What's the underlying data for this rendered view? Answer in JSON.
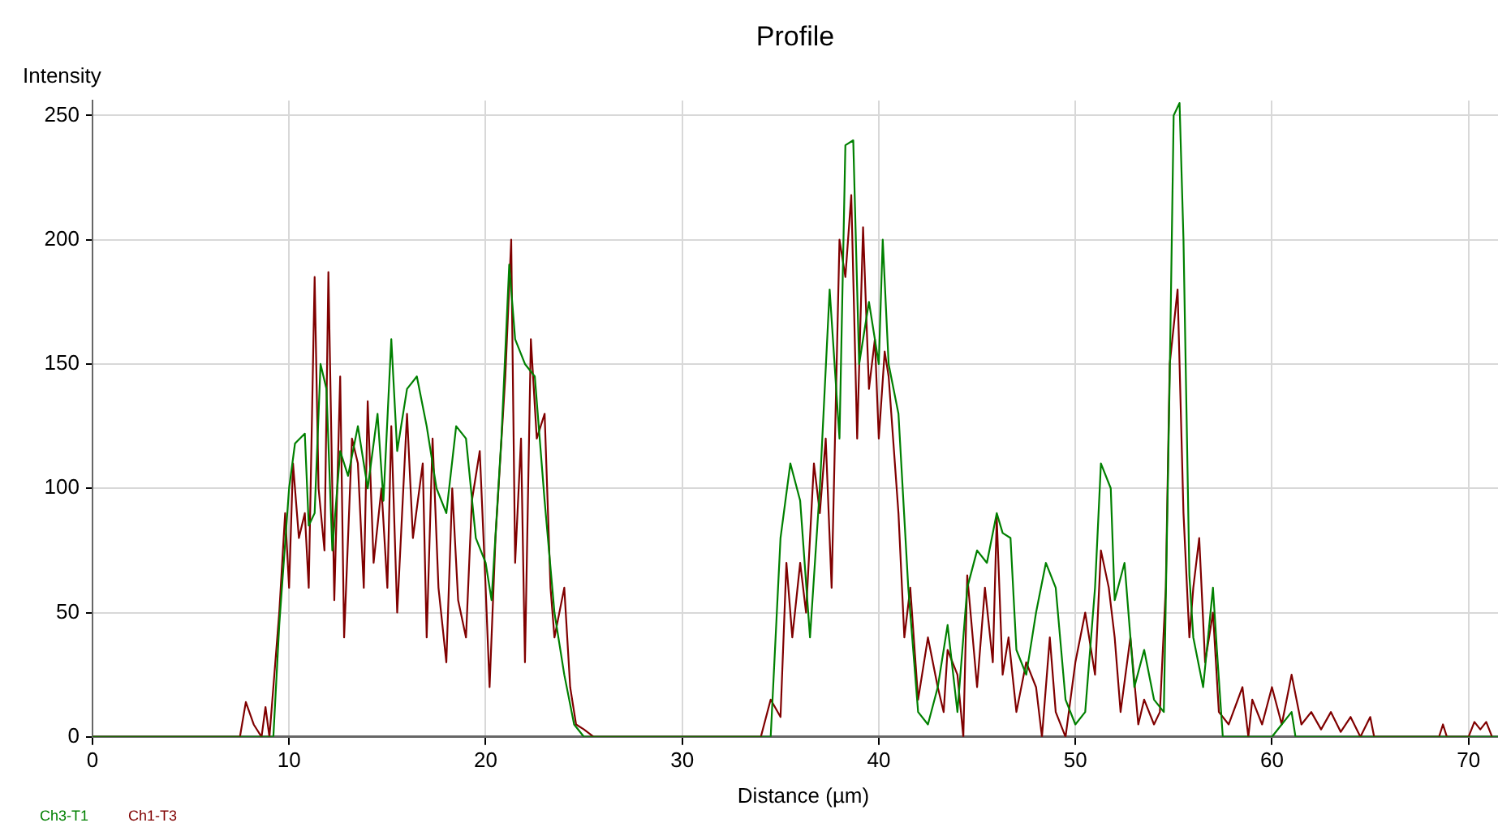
{
  "chart_data": {
    "type": "line",
    "title": "Profile",
    "xlabel": "Distance (µm)",
    "ylabel": "Intensity",
    "xlim": [
      0,
      71.5
    ],
    "xticks": [
      0,
      10,
      20,
      30,
      40,
      50,
      60,
      70
    ],
    "ylim": [
      0,
      256
    ],
    "yticks": [
      0,
      50,
      100,
      150,
      200,
      250
    ],
    "grid": true,
    "legend": "bottom left",
    "marker": "none",
    "line_style": "solid",
    "series": [
      {
        "name": "Ch3-T1",
        "color": "#008000",
        "x": [
          0,
          9.2,
          9.5,
          10,
          10.3,
          10.8,
          11,
          11.3,
          11.6,
          11.9,
          12.2,
          12.6,
          13,
          13.5,
          14,
          14.5,
          14.8,
          15.2,
          15.5,
          16,
          16.5,
          17,
          17.5,
          18,
          18.5,
          19,
          19.5,
          20,
          20.3,
          20.8,
          21.2,
          21.5,
          22,
          22.5,
          23,
          23.5,
          24,
          24.5,
          25,
          34.5,
          35,
          35.5,
          36,
          36.5,
          37,
          37.5,
          38,
          38.3,
          38.7,
          39,
          39.5,
          40,
          40.2,
          40.5,
          41,
          41.5,
          42,
          42.5,
          43,
          43.5,
          44,
          44.5,
          45,
          45.5,
          46,
          46.3,
          46.7,
          47,
          47.5,
          48,
          48.5,
          49,
          49.5,
          50,
          50.5,
          51,
          51.3,
          51.8,
          52,
          52.5,
          53,
          53.5,
          54,
          54.5,
          54.8,
          55,
          55.3,
          55.5,
          55.8,
          56,
          56.5,
          57,
          57.2,
          57.5,
          60,
          61,
          61.2,
          71.5
        ],
        "values": [
          0,
          0,
          45,
          100,
          118,
          122,
          85,
          90,
          150,
          140,
          75,
          115,
          105,
          125,
          100,
          130,
          95,
          160,
          115,
          140,
          145,
          125,
          100,
          90,
          125,
          120,
          80,
          70,
          55,
          120,
          190,
          160,
          150,
          145,
          95,
          50,
          25,
          5,
          0,
          0,
          80,
          110,
          95,
          40,
          100,
          180,
          120,
          238,
          240,
          150,
          175,
          150,
          200,
          150,
          130,
          60,
          10,
          5,
          20,
          45,
          10,
          60,
          75,
          70,
          90,
          82,
          80,
          35,
          25,
          50,
          70,
          60,
          15,
          5,
          10,
          60,
          110,
          100,
          55,
          70,
          20,
          35,
          15,
          10,
          145,
          250,
          255,
          200,
          65,
          40,
          20,
          60,
          35,
          0,
          0,
          10,
          0,
          0
        ]
      },
      {
        "name": "Ch1-T3",
        "color": "#800000",
        "x": [
          0,
          7.5,
          7.8,
          8.2,
          8.6,
          8.8,
          9,
          9.5,
          9.8,
          10,
          10.2,
          10.5,
          10.8,
          11,
          11.3,
          11.5,
          11.8,
          12,
          12.3,
          12.6,
          12.8,
          13.2,
          13.5,
          13.8,
          14,
          14.3,
          14.7,
          15,
          15.2,
          15.5,
          16,
          16.3,
          16.8,
          17,
          17.3,
          17.6,
          18,
          18.3,
          18.6,
          19,
          19.3,
          19.7,
          20,
          20.2,
          20.5,
          21,
          21.3,
          21.5,
          21.8,
          22,
          22.3,
          22.6,
          23,
          23.3,
          23.5,
          24,
          24.3,
          24.6,
          25,
          25.5,
          34,
          34.5,
          35,
          35.3,
          35.6,
          36,
          36.3,
          36.7,
          37,
          37.3,
          37.6,
          38,
          38.3,
          38.6,
          38.9,
          39.2,
          39.5,
          39.8,
          40,
          40.3,
          40.5,
          41,
          41.3,
          41.6,
          42,
          42.5,
          43,
          43.3,
          43.5,
          44,
          44.3,
          44.5,
          45,
          45.4,
          45.8,
          46,
          46.3,
          46.6,
          47,
          47.5,
          48,
          48.3,
          48.7,
          49,
          49.5,
          50,
          50.5,
          51,
          51.3,
          51.7,
          52,
          52.3,
          52.8,
          53.2,
          53.5,
          54,
          54.3,
          54.6,
          54.8,
          55,
          55.2,
          55.5,
          55.8,
          56,
          56.3,
          56.6,
          57,
          57.3,
          57.8,
          58.5,
          58.8,
          59,
          59.5,
          60,
          60.5,
          61,
          61.5,
          62,
          62.5,
          63,
          63.5,
          64,
          64.5,
          65,
          65.2,
          68.5,
          68.7,
          68.9,
          70,
          70.3,
          70.6,
          70.9,
          71.2
        ],
        "values": [
          0,
          0,
          14,
          5,
          0,
          12,
          0,
          50,
          90,
          60,
          110,
          80,
          90,
          60,
          185,
          100,
          75,
          187,
          55,
          145,
          40,
          120,
          110,
          60,
          135,
          70,
          100,
          60,
          125,
          50,
          130,
          80,
          110,
          40,
          120,
          60,
          30,
          100,
          55,
          40,
          95,
          115,
          60,
          20,
          80,
          145,
          200,
          70,
          120,
          30,
          160,
          120,
          130,
          60,
          40,
          60,
          20,
          5,
          3,
          0,
          0,
          15,
          8,
          70,
          40,
          70,
          50,
          110,
          90,
          120,
          60,
          200,
          185,
          218,
          120,
          205,
          140,
          160,
          120,
          155,
          145,
          90,
          40,
          60,
          15,
          40,
          20,
          10,
          35,
          25,
          0,
          65,
          20,
          60,
          30,
          88,
          25,
          40,
          10,
          30,
          20,
          0,
          40,
          10,
          0,
          30,
          50,
          25,
          75,
          60,
          40,
          10,
          40,
          5,
          15,
          5,
          10,
          60,
          150,
          165,
          180,
          90,
          40,
          60,
          80,
          30,
          50,
          10,
          5,
          20,
          0,
          15,
          5,
          20,
          5,
          25,
          5,
          10,
          3,
          10,
          2,
          8,
          0,
          8,
          0,
          0,
          5,
          0,
          0,
          6,
          3,
          6,
          0
        ]
      }
    ]
  }
}
